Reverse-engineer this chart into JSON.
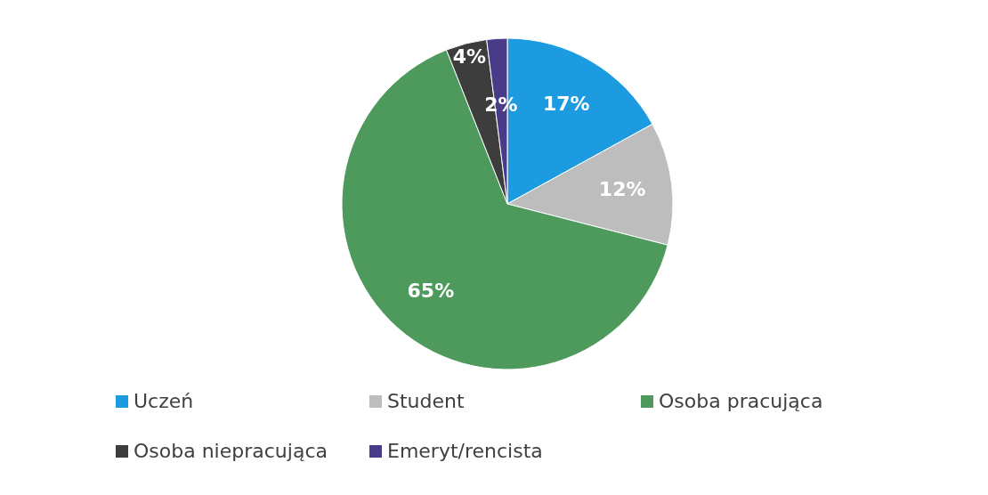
{
  "chart_data": {
    "type": "pie",
    "categories": [
      "Uczeń",
      "Student",
      "Osoba pracująca",
      "Osoba niepracująca",
      "Emeryt/rencista"
    ],
    "values": [
      17,
      12,
      65,
      4,
      2
    ],
    "colors": [
      "#1c9be0",
      "#bdbdbd",
      "#4e9a5c",
      "#3d3d3d",
      "#4a3a8a"
    ],
    "value_labels": [
      "17%",
      "12%",
      "65%",
      "4%",
      "2%"
    ],
    "legend": "bottom"
  }
}
